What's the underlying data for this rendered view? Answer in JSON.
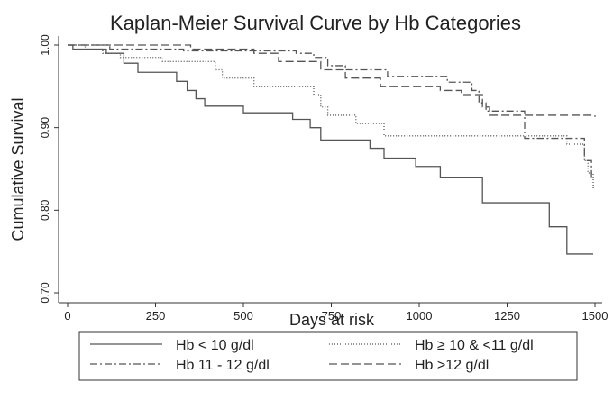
{
  "chart_data": {
    "type": "step",
    "title": "Kaplan-Meier Survival Curve by Hb Categories",
    "x_label": "Days at risk",
    "y_label": "Cumulative Survival",
    "xlim": [
      0,
      1500
    ],
    "xticks": [
      0,
      250,
      500,
      750,
      1000,
      1250,
      1500
    ],
    "ylim": [
      0.7,
      1.0
    ],
    "yticks": [
      {
        "value": 0.7,
        "label": "0.70"
      },
      {
        "value": 0.8,
        "label": "0.80"
      },
      {
        "value": 0.9,
        "label": "0.90"
      },
      {
        "value": 1.0,
        "label": "1.00"
      }
    ],
    "series": [
      {
        "name": "Hb < 10 g/dl",
        "color": "#555555",
        "dash": "none",
        "x": [
          0,
          15,
          110,
          160,
          200,
          310,
          340,
          365,
          390,
          500,
          640,
          690,
          720,
          860,
          900,
          990,
          1060,
          1180,
          1370,
          1420,
          1495
        ],
        "values": [
          1.0,
          0.995,
          0.99,
          0.978,
          0.967,
          0.956,
          0.945,
          0.935,
          0.926,
          0.918,
          0.91,
          0.9,
          0.885,
          0.875,
          0.863,
          0.853,
          0.84,
          0.809,
          0.78,
          0.747,
          0.747
        ]
      },
      {
        "name": "Hb ≥ 10 & <11 g/dl",
        "color": "#555555",
        "dash": "1,2",
        "x": [
          0,
          50,
          100,
          150,
          270,
          420,
          440,
          530,
          700,
          720,
          740,
          820,
          900,
          1420,
          1470,
          1480,
          1495
        ],
        "values": [
          1.0,
          0.995,
          0.99,
          0.985,
          0.98,
          0.97,
          0.96,
          0.95,
          0.94,
          0.925,
          0.915,
          0.905,
          0.89,
          0.88,
          0.86,
          0.845,
          0.825
        ]
      },
      {
        "name": "Hb 11 - 12 g/dl",
        "color": "#555555",
        "dash": "8,3,2,3",
        "x": [
          0,
          120,
          330,
          650,
          700,
          740,
          790,
          910,
          1080,
          1150,
          1170,
          1190,
          1300,
          1470,
          1490
        ],
        "values": [
          1.0,
          0.995,
          0.993,
          0.99,
          0.985,
          0.975,
          0.97,
          0.962,
          0.955,
          0.945,
          0.93,
          0.92,
          0.887,
          0.86,
          0.84
        ]
      },
      {
        "name": "Hb >12 g/dl",
        "color": "#555555",
        "dash": "9,4",
        "x": [
          0,
          350,
          530,
          600,
          720,
          790,
          890,
          1060,
          1120,
          1180,
          1200,
          1500
        ],
        "values": [
          1.0,
          0.995,
          0.99,
          0.98,
          0.97,
          0.96,
          0.95,
          0.945,
          0.94,
          0.925,
          0.915,
          0.913
        ]
      }
    ]
  }
}
